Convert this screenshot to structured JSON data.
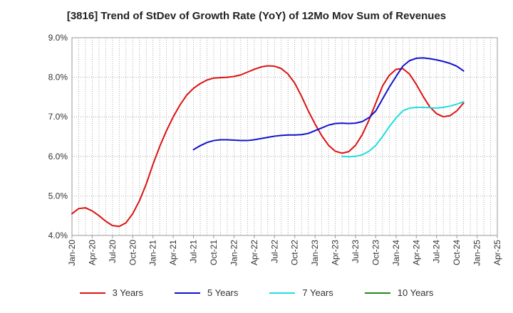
{
  "chart_data": {
    "type": "line",
    "title": "[3816]  Trend of StDev of Growth Rate (YoY) of 12Mo Mov Sum of Revenues",
    "xlabel": "",
    "ylabel": "",
    "ylim": [
      4.0,
      9.0
    ],
    "y_ticks": [
      "4.0%",
      "5.0%",
      "6.0%",
      "7.0%",
      "8.0%",
      "9.0%"
    ],
    "x_ticks": [
      "Jan-20",
      "Apr-20",
      "Jul-20",
      "Oct-20",
      "Jan-21",
      "Apr-21",
      "Jul-21",
      "Oct-21",
      "Jan-22",
      "Apr-22",
      "Jul-22",
      "Oct-22",
      "Jan-23",
      "Apr-23",
      "Jul-23",
      "Oct-23",
      "Jan-24",
      "Apr-24",
      "Jul-24",
      "Oct-24",
      "Jan-25",
      "Apr-25"
    ],
    "x_start": "Jan-20",
    "x_unit": "month_index",
    "grid": true,
    "legend_position": "bottom",
    "series": [
      {
        "name": "3 Years",
        "color": "#dd1111",
        "points": [
          [
            0,
            4.55
          ],
          [
            1,
            4.68
          ],
          [
            2,
            4.7
          ],
          [
            3,
            4.62
          ],
          [
            4,
            4.5
          ],
          [
            5,
            4.36
          ],
          [
            6,
            4.25
          ],
          [
            7,
            4.23
          ],
          [
            8,
            4.32
          ],
          [
            9,
            4.55
          ],
          [
            10,
            4.88
          ],
          [
            11,
            5.3
          ],
          [
            12,
            5.8
          ],
          [
            13,
            6.25
          ],
          [
            14,
            6.65
          ],
          [
            15,
            7.0
          ],
          [
            16,
            7.3
          ],
          [
            17,
            7.55
          ],
          [
            18,
            7.72
          ],
          [
            19,
            7.84
          ],
          [
            20,
            7.93
          ],
          [
            21,
            7.98
          ],
          [
            22,
            7.99
          ],
          [
            23,
            8.0
          ],
          [
            24,
            8.02
          ],
          [
            25,
            8.06
          ],
          [
            26,
            8.13
          ],
          [
            27,
            8.2
          ],
          [
            28,
            8.26
          ],
          [
            29,
            8.29
          ],
          [
            30,
            8.28
          ],
          [
            31,
            8.22
          ],
          [
            32,
            8.08
          ],
          [
            33,
            7.85
          ],
          [
            34,
            7.52
          ],
          [
            35,
            7.15
          ],
          [
            36,
            6.82
          ],
          [
            37,
            6.52
          ],
          [
            38,
            6.28
          ],
          [
            39,
            6.13
          ],
          [
            40,
            6.08
          ],
          [
            41,
            6.12
          ],
          [
            42,
            6.28
          ],
          [
            43,
            6.55
          ],
          [
            44,
            6.92
          ],
          [
            45,
            7.35
          ],
          [
            46,
            7.78
          ],
          [
            47,
            8.05
          ],
          [
            48,
            8.2
          ],
          [
            49,
            8.22
          ],
          [
            50,
            8.08
          ],
          [
            51,
            7.82
          ],
          [
            52,
            7.52
          ],
          [
            53,
            7.25
          ],
          [
            54,
            7.08
          ],
          [
            55,
            7.0
          ],
          [
            56,
            7.03
          ],
          [
            57,
            7.15
          ],
          [
            58,
            7.35
          ]
        ]
      },
      {
        "name": "5 Years",
        "color": "#1111cc",
        "points": [
          [
            18,
            6.17
          ],
          [
            19,
            6.27
          ],
          [
            20,
            6.35
          ],
          [
            21,
            6.4
          ],
          [
            22,
            6.42
          ],
          [
            23,
            6.42
          ],
          [
            24,
            6.41
          ],
          [
            25,
            6.4
          ],
          [
            26,
            6.4
          ],
          [
            27,
            6.42
          ],
          [
            28,
            6.45
          ],
          [
            29,
            6.48
          ],
          [
            30,
            6.51
          ],
          [
            31,
            6.53
          ],
          [
            32,
            6.54
          ],
          [
            33,
            6.54
          ],
          [
            34,
            6.55
          ],
          [
            35,
            6.58
          ],
          [
            36,
            6.65
          ],
          [
            37,
            6.72
          ],
          [
            38,
            6.79
          ],
          [
            39,
            6.83
          ],
          [
            40,
            6.84
          ],
          [
            41,
            6.83
          ],
          [
            42,
            6.84
          ],
          [
            43,
            6.88
          ],
          [
            44,
            6.98
          ],
          [
            45,
            7.15
          ],
          [
            46,
            7.45
          ],
          [
            47,
            7.75
          ],
          [
            48,
            8.02
          ],
          [
            49,
            8.28
          ],
          [
            50,
            8.42
          ],
          [
            51,
            8.48
          ],
          [
            52,
            8.49
          ],
          [
            53,
            8.47
          ],
          [
            54,
            8.44
          ],
          [
            55,
            8.4
          ],
          [
            56,
            8.35
          ],
          [
            57,
            8.28
          ],
          [
            58,
            8.16
          ]
        ]
      },
      {
        "name": "7 Years",
        "color": "#22dddd",
        "points": [
          [
            40,
            6.0
          ],
          [
            41,
            5.99
          ],
          [
            42,
            6.0
          ],
          [
            43,
            6.04
          ],
          [
            44,
            6.13
          ],
          [
            45,
            6.28
          ],
          [
            46,
            6.5
          ],
          [
            47,
            6.75
          ],
          [
            48,
            6.97
          ],
          [
            49,
            7.15
          ],
          [
            50,
            7.22
          ],
          [
            51,
            7.24
          ],
          [
            52,
            7.24
          ],
          [
            53,
            7.23
          ],
          [
            54,
            7.22
          ],
          [
            55,
            7.24
          ],
          [
            56,
            7.27
          ],
          [
            57,
            7.32
          ],
          [
            58,
            7.38
          ]
        ]
      },
      {
        "name": "10 Years",
        "color": "#228822",
        "points": []
      }
    ]
  }
}
